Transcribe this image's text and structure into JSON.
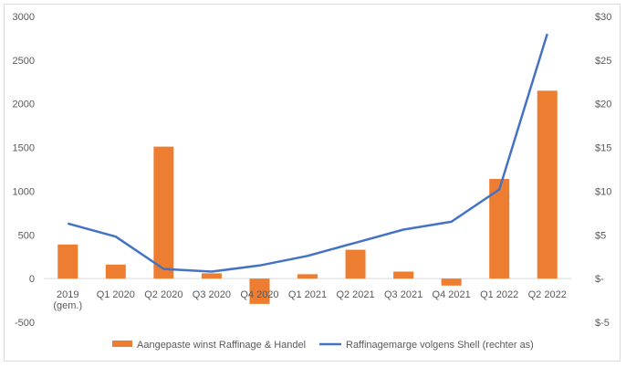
{
  "chart_data": {
    "type": "bar+line",
    "categories": [
      [
        "2019",
        "(gem.)"
      ],
      [
        "Q1 2020"
      ],
      [
        "Q2 2020"
      ],
      [
        "Q3 2020"
      ],
      [
        "Q4 2020"
      ],
      [
        "Q1 2021"
      ],
      [
        "Q2 2021"
      ],
      [
        "Q3 2021"
      ],
      [
        "Q4 2021"
      ],
      [
        "Q1 2022"
      ],
      [
        "Q2 2022"
      ]
    ],
    "series": [
      {
        "name": "Aangepaste winst Raffinage & Handel",
        "type": "bar",
        "axis": "left",
        "color": "#ED7D31",
        "values": [
          390,
          160,
          1510,
          60,
          -290,
          50,
          330,
          80,
          -80,
          1140,
          2150
        ]
      },
      {
        "name": "Raffinagemarge volgens Shell (rechter as)",
        "type": "line",
        "axis": "right",
        "color": "#4472C4",
        "values": [
          6.3,
          4.8,
          1.1,
          0.8,
          1.5,
          2.6,
          4.1,
          5.6,
          6.5,
          10.2,
          28.0
        ]
      }
    ],
    "left_axis": {
      "min": -500,
      "max": 3000,
      "ticks": [
        -500,
        0,
        500,
        1000,
        1500,
        2000,
        2500,
        3000
      ],
      "tick_labels": [
        "-500",
        "0",
        "500",
        "1000",
        "1500",
        "2000",
        "2500",
        "3000"
      ]
    },
    "right_axis": {
      "min": -5,
      "max": 30,
      "ticks": [
        -5,
        0,
        5,
        10,
        15,
        20,
        25,
        30
      ],
      "tick_labels": [
        "$-5",
        "$-",
        "$5",
        "$10",
        "$15",
        "$20",
        "$25",
        "$30"
      ]
    },
    "grid": false,
    "legend_position": "bottom"
  }
}
